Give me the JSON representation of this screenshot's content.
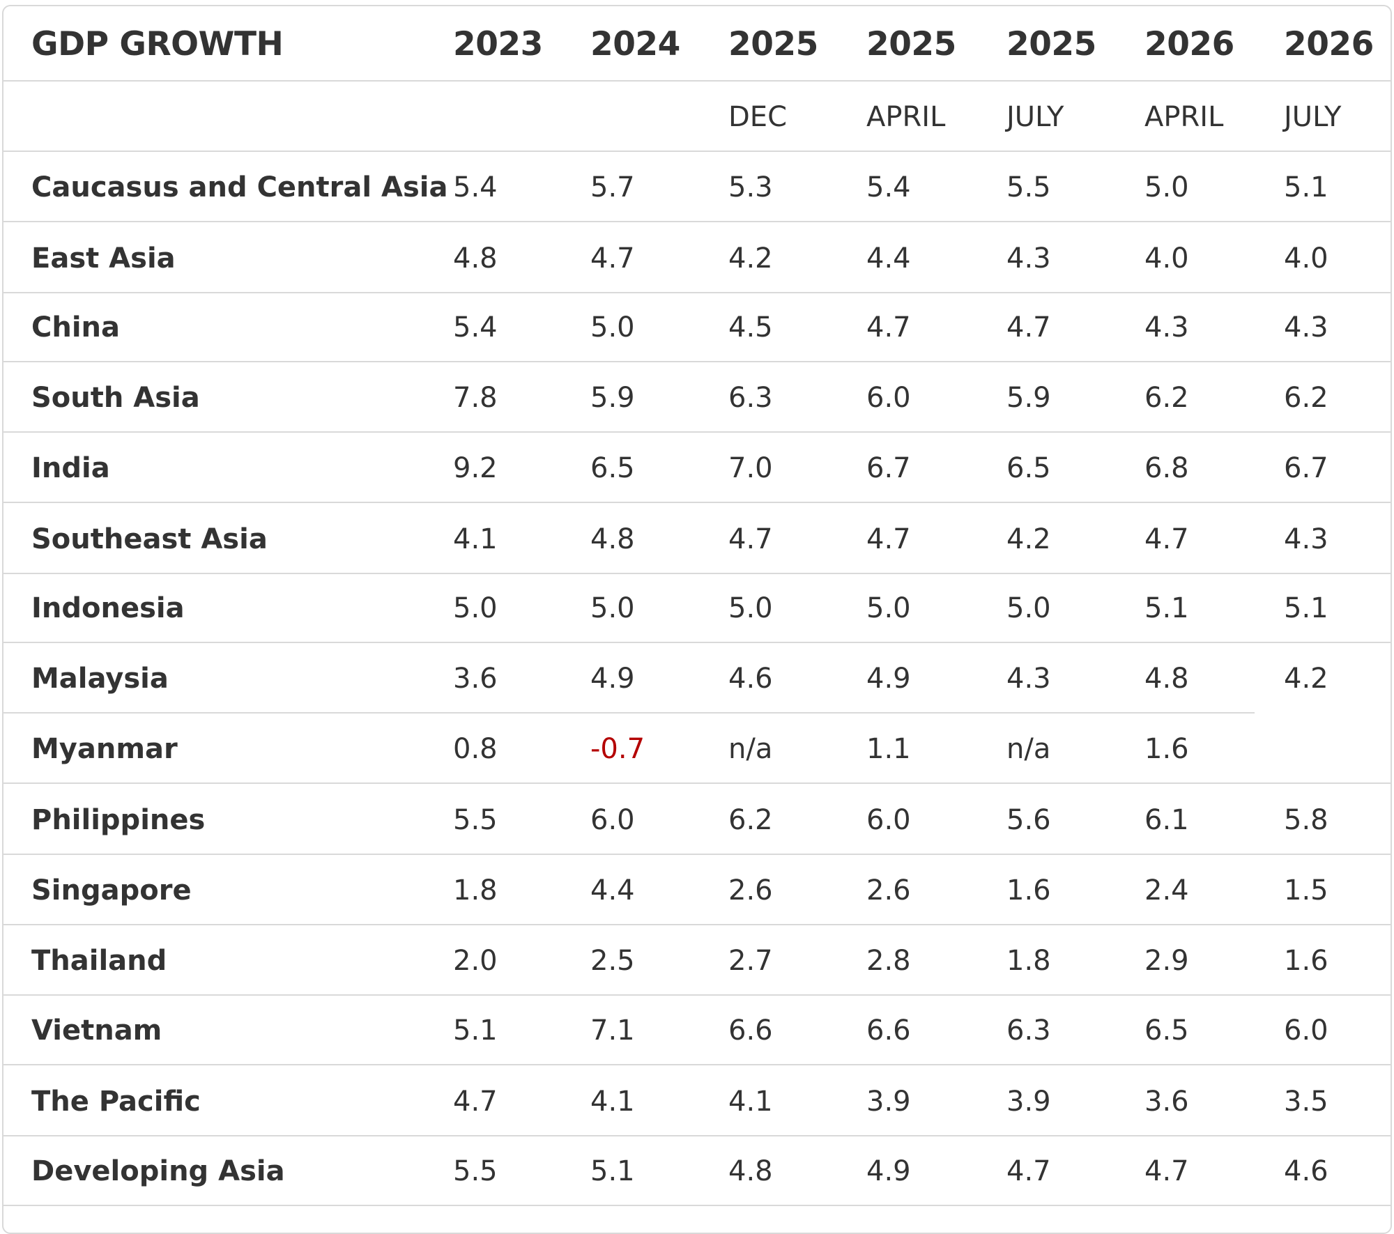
{
  "chart_data": {
    "type": "table",
    "title": "GDP GROWTH",
    "columns": [
      {
        "year": "2023",
        "sub": ""
      },
      {
        "year": "2024",
        "sub": ""
      },
      {
        "year": "2025",
        "sub": "DEC"
      },
      {
        "year": "2025",
        "sub": "APRIL"
      },
      {
        "year": "2025",
        "sub": "JULY"
      },
      {
        "year": "2026",
        "sub": "APRIL"
      },
      {
        "year": "2026",
        "sub": "JULY"
      }
    ],
    "rows": [
      {
        "label": "Caucasus and Central Asia",
        "values": [
          "5.4",
          "5.7",
          "5.3",
          "5.4",
          "5.5",
          "5.0",
          "5.1"
        ]
      },
      {
        "label": "East Asia",
        "values": [
          "4.8",
          "4.7",
          "4.2",
          "4.4",
          "4.3",
          "4.0",
          "4.0"
        ]
      },
      {
        "label": "China",
        "values": [
          "5.4",
          "5.0",
          "4.5",
          "4.7",
          "4.7",
          "4.3",
          "4.3"
        ]
      },
      {
        "label": "South Asia",
        "values": [
          "7.8",
          "5.9",
          "6.3",
          "6.0",
          "5.9",
          "6.2",
          "6.2"
        ]
      },
      {
        "label": "India",
        "values": [
          "9.2",
          "6.5",
          "7.0",
          "6.7",
          "6.5",
          "6.8",
          "6.7"
        ]
      },
      {
        "label": "Southeast Asia",
        "values": [
          "4.1",
          "4.8",
          "4.7",
          "4.7",
          "4.2",
          "4.7",
          "4.3"
        ]
      },
      {
        "label": "Indonesia",
        "values": [
          "5.0",
          "5.0",
          "5.0",
          "5.0",
          "5.0",
          "5.1",
          "5.1"
        ]
      },
      {
        "label": "Malaysia",
        "values": [
          "3.6",
          "4.9",
          "4.6",
          "4.9",
          "4.3",
          "4.8",
          "4.2"
        ]
      },
      {
        "label": "Myanmar",
        "values": [
          "0.8",
          "-0.7",
          "n/a",
          "1.1",
          "n/a",
          "1.6",
          ""
        ]
      },
      {
        "label": "Philippines",
        "values": [
          "5.5",
          "6.0",
          "6.2",
          "6.0",
          "5.6",
          "6.1",
          "5.8"
        ]
      },
      {
        "label": "Singapore",
        "values": [
          "1.8",
          "4.4",
          "2.6",
          "2.6",
          "1.6",
          "2.4",
          "1.5"
        ]
      },
      {
        "label": "Thailand",
        "values": [
          "2.0",
          "2.5",
          "2.7",
          "2.8",
          "1.8",
          "2.9",
          "1.6"
        ]
      },
      {
        "label": "Vietnam",
        "values": [
          "5.1",
          "7.1",
          "6.6",
          "6.6",
          "6.3",
          "6.5",
          "6.0"
        ]
      },
      {
        "label": "The Pacific",
        "values": [
          "4.7",
          "4.1",
          "4.1",
          "3.9",
          "3.9",
          "3.6",
          "3.5"
        ]
      },
      {
        "label": "Developing Asia",
        "values": [
          "5.5",
          "5.1",
          "4.8",
          "4.9",
          "4.7",
          "4.7",
          "4.6"
        ]
      }
    ],
    "colors": {
      "text": "#333333",
      "negative": "#b40000",
      "rule": "#d9d9d9"
    }
  }
}
